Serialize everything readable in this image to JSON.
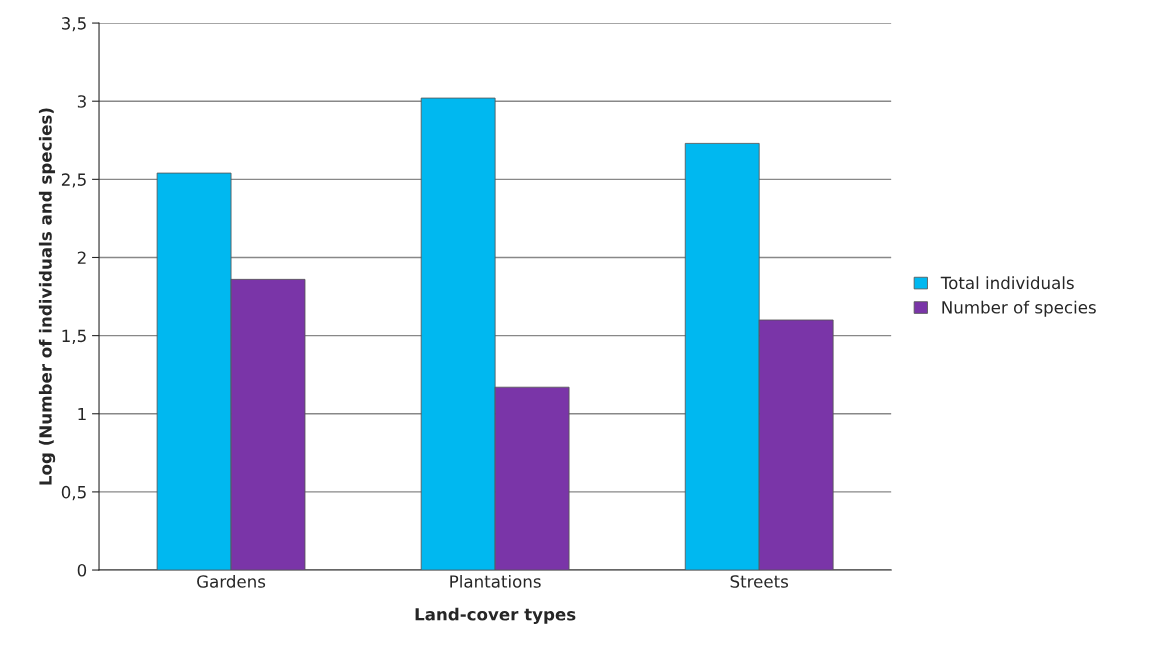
{
  "chart_data": {
    "type": "bar",
    "xlabel": "Land-cover types",
    "ylabel": "Log (Number of individuals and species)",
    "categories": [
      "Gardens",
      "Plantations",
      "Streets"
    ],
    "series": [
      {
        "name": "Total individuals",
        "color": "#00b8f0",
        "values": [
          2.54,
          3.02,
          2.73
        ]
      },
      {
        "name": "Number of species",
        "color": "#7a35a8",
        "values": [
          1.86,
          1.17,
          1.6
        ]
      }
    ],
    "ylim": [
      0,
      3.5
    ],
    "yticks": [
      0,
      {
        "value": 0.5,
        "label": "0,5"
      },
      1,
      {
        "value": 1.5,
        "label": "1,5"
      },
      2,
      {
        "value": 2.5,
        "label": "2,5"
      },
      3,
      {
        "value": 3.5,
        "label": "3,5"
      }
    ],
    "grid": "y",
    "legend": "right"
  }
}
